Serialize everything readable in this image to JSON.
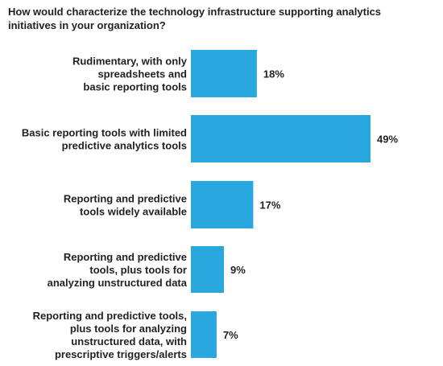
{
  "chart_data": {
    "type": "bar",
    "orientation": "horizontal",
    "title": "How would characterize the technology infrastructure supporting analytics initiatives in your organization?",
    "categories": [
      [
        "Rudimentary, with only",
        "spreadsheets and",
        "basic reporting tools"
      ],
      [
        "Basic reporting tools with limited",
        "predictive analytics tools"
      ],
      [
        "Reporting and predictive",
        "tools widely available"
      ],
      [
        "Reporting and predictive",
        "tools, plus tools for",
        "analyzing unstructured data"
      ],
      [
        "Reporting and predictive tools,",
        "plus tools for analyzing",
        "unstructured data, with",
        "prescriptive triggers/alerts"
      ]
    ],
    "values": [
      18,
      49,
      17,
      9,
      7
    ],
    "value_labels": [
      "18%",
      "49%",
      "17%",
      "9%",
      "7%"
    ],
    "unit": "%",
    "xlim": [
      0,
      49
    ],
    "grid": false,
    "legend": "none",
    "bar_color": "#29a8e0"
  }
}
